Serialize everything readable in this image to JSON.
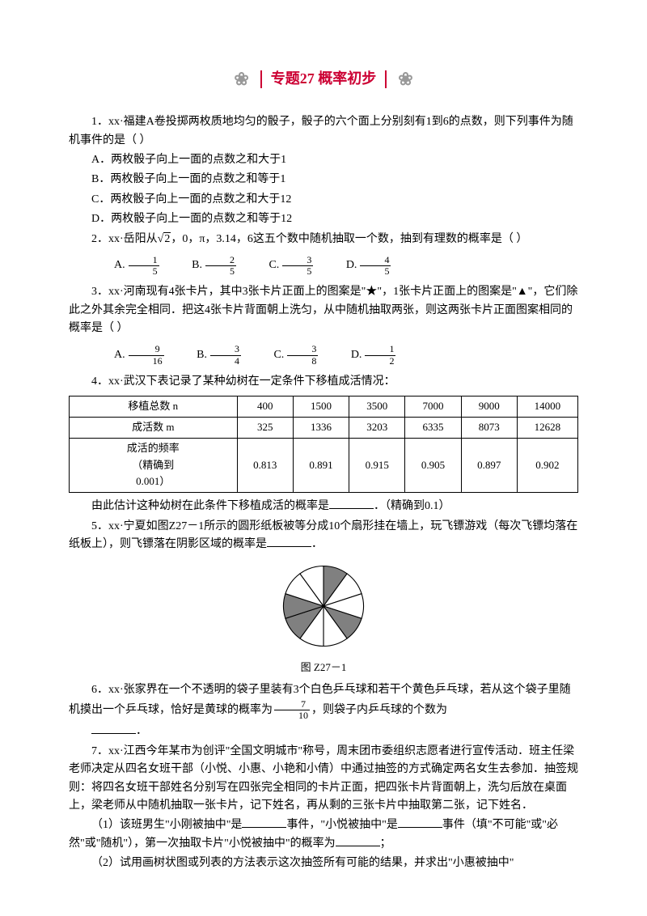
{
  "title": "专题27  概率初步",
  "q1": {
    "stem": "1．xx·福建A卷投掷两枚质地均匀的骰子，骰子的六个面上分别刻有1到6的点数，则下列事件为随机事件的是（  ）",
    "a": "A．两枚骰子向上一面的点数之和大于1",
    "b": "B．两枚骰子向上一面的点数之和等于1",
    "c": "C．两枚骰子向上一面的点数之和大于12",
    "d": "D．两枚骰子向上一面的点数之和等于12"
  },
  "q2": {
    "stem_a": "2．xx·岳阳从",
    "sqrt": "2",
    "stem_b": "，0，π，3.14，6这五个数中随机抽取一个数，抽到有理数的概率是（  ）",
    "labA": "A.",
    "labB": "B.",
    "labC": "C.",
    "labD": "D.",
    "nA": "1",
    "dA": "5",
    "nB": "2",
    "dB": "5",
    "nC": "3",
    "dC": "5",
    "nD": "4",
    "dD": "5"
  },
  "q3": {
    "stem": "3．xx·河南现有4张卡片，其中3张卡片正面上的图案是\"★\"，1张卡片正面上的图案是\"▲\"，它们除此之外其余完全相同．把这4张卡片背面朝上洗匀，从中随机抽取两张，则这两张卡片正面图案相同的概率是（  ）",
    "labA": "A.",
    "labB": "B.",
    "labC": "C.",
    "labD": "D.",
    "nA": "9",
    "dA": "16",
    "nB": "3",
    "dB": "4",
    "nC": "3",
    "dC": "8",
    "nD": "1",
    "dD": "2"
  },
  "q4": {
    "stem": "4．xx·武汉下表记录了某种幼树在一定条件下移植成活情况：",
    "h1": "移植总数 n",
    "h2": "成活数 m",
    "h3": "成活的频率\n（精确到\n0.001）",
    "r1": [
      "400",
      "1500",
      "3500",
      "7000",
      "9000",
      "14000"
    ],
    "r2": [
      "325",
      "1336",
      "3203",
      "6335",
      "8073",
      "12628"
    ],
    "r3": [
      "0.813",
      "0.891",
      "0.915",
      "0.905",
      "0.897",
      "0.902"
    ],
    "tail_a": "由此估计这种幼树在此条件下移植成活的概率是",
    "tail_b": "．（精确到0.1）"
  },
  "q5": {
    "stem_a": "5．xx·宁夏如图Z27－1所示的圆形纸板被等分成10个扇形挂在墙上，玩飞镖游戏（每次飞镖均落在纸板上），则飞镖落在阴影区域的概率是",
    "stem_b": "．",
    "caption": "图 Z27－1",
    "shaded_fill": "#808080",
    "plain_fill": "#ffffff",
    "stroke": "#000000"
  },
  "q6": {
    "a": "6．xx·张家界在一个不透明的袋子里装有3个白色乒乓球和若干个黄色乒乓球，若从这个袋子里随机摸出一个乒乓球，恰好是黄球的概率为",
    "num": "7",
    "den": "10",
    "b": "，则袋子内乒乓球的个数为",
    "c": "．"
  },
  "q7": {
    "stem": "7．xx·江西今年某市为创评\"全国文明城市\"称号，周末团市委组织志愿者进行宣传活动．班主任梁老师决定从四名女班干部（小悦、小惠、小艳和小倩）中通过抽签的方式确定两名女生去参加．抽签规则：将四名女班干部姓名分别写在四张完全相同的卡片正面，把四张卡片背面朝上，洗匀后放在桌面上，梁老师从中随机抽取一张卡片，记下姓名，再从剩的三张卡片中抽取第二张，记下姓名．",
    "p1a": "（1）该班男生\"小刚被抽中\"是",
    "p1b": "事件，\"小悦被抽中\"是",
    "p1c": "事件（填\"不可能\"或\"必然\"或\"随机\"），第一次抽取卡片\"小悦被抽中\"的概率为",
    "p1d": "；",
    "p2": "（2）试用画树状图或列表的方法表示这次抽签所有可能的结果，并求出\"小惠被抽中\""
  }
}
